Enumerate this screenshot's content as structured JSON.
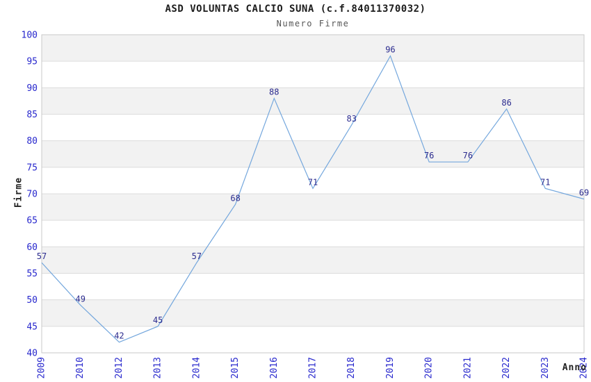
{
  "header": {
    "title": "ASD VOLUNTAS CALCIO SUNA (c.f.84011370032)",
    "subtitle": "Numero Firme"
  },
  "chart_data": {
    "type": "line",
    "title": "ASD VOLUNTAS CALCIO SUNA (c.f.84011370032)",
    "subtitle": "Numero Firme",
    "xlabel": "Anno",
    "ylabel": "Firme",
    "categories": [
      "2009",
      "2010",
      "2012",
      "2013",
      "2014",
      "2015",
      "2016",
      "2017",
      "2018",
      "2019",
      "2020",
      "2021",
      "2022",
      "2023",
      "2024"
    ],
    "values": [
      57,
      49,
      42,
      45,
      57,
      68,
      88,
      71,
      83,
      96,
      76,
      76,
      86,
      71,
      69
    ],
    "ylim": [
      40,
      100
    ],
    "yticks": [
      40,
      45,
      50,
      55,
      60,
      65,
      70,
      75,
      80,
      85,
      90,
      95,
      100
    ],
    "grid": "alternating-horizontal-bands",
    "legend_position": "none",
    "point_labels_visible": true,
    "colors": {
      "line": "#74a7dd",
      "point_label": "#2b2b8e",
      "tick_label": "#2727cd",
      "title": "#1c1c1c",
      "subtitle": "#565656",
      "band": "#f2f2f2",
      "gridline": "#dcdcdc",
      "plot_border": "#c9c9c9",
      "background": "#ffffff"
    }
  }
}
